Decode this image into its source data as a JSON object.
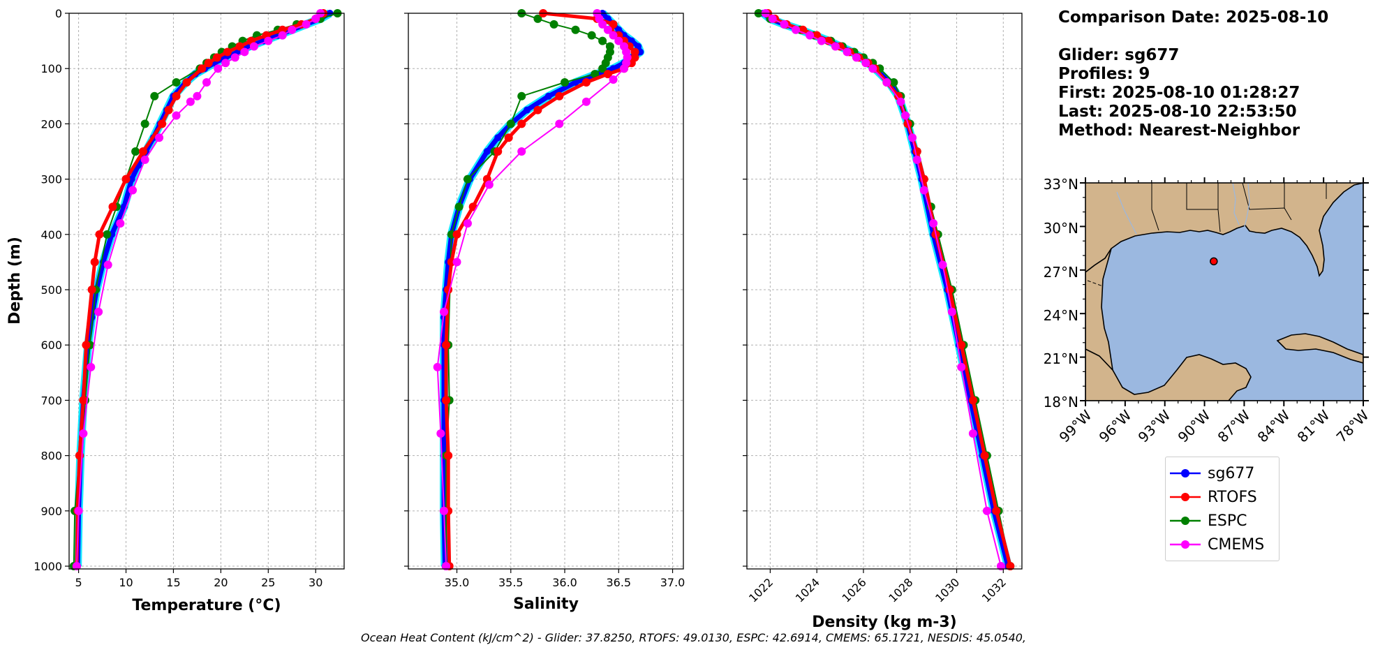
{
  "chart_data": [
    {
      "type": "line",
      "xlabel": "Temperature (°C)",
      "ylabel": "Depth (m)",
      "xlim": [
        4,
        33
      ],
      "ylim": [
        1005,
        0
      ],
      "xticks": [
        5,
        10,
        15,
        20,
        25,
        30
      ],
      "yticks": [
        0,
        100,
        200,
        300,
        400,
        500,
        600,
        700,
        800,
        900,
        1000
      ],
      "grid": true,
      "series": [
        {
          "name": "sg677",
          "depth": [
            0,
            10,
            20,
            30,
            40,
            50,
            60,
            70,
            80,
            90,
            100,
            110,
            125,
            150,
            175,
            200,
            225,
            250,
            275,
            300,
            350,
            400,
            450,
            500,
            550,
            600,
            700,
            800,
            900,
            1000
          ],
          "values": [
            31.5,
            30.5,
            29.0,
            27.5,
            26.0,
            24.5,
            23.0,
            21.8,
            20.5,
            19.3,
            18.3,
            17.3,
            16.3,
            15.0,
            14.3,
            13.6,
            12.9,
            12.1,
            11.3,
            10.6,
            9.8,
            8.5,
            7.6,
            6.9,
            6.4,
            6.0,
            5.5,
            5.2,
            5.0,
            4.9
          ]
        },
        {
          "name": "RTOFS",
          "depth": [
            0,
            10,
            20,
            30,
            40,
            50,
            60,
            70,
            80,
            90,
            100,
            125,
            150,
            175,
            200,
            250,
            300,
            350,
            400,
            450,
            500,
            600,
            700,
            800,
            900,
            1000
          ],
          "values": [
            30.8,
            30.0,
            28.5,
            26.5,
            24.8,
            23.2,
            22.0,
            20.7,
            19.6,
            18.7,
            18.0,
            16.4,
            15.3,
            14.5,
            13.8,
            11.8,
            10.0,
            8.6,
            7.2,
            6.7,
            6.4,
            5.8,
            5.5,
            5.1,
            4.9,
            4.8
          ]
        },
        {
          "name": "ESPC",
          "depth": [
            0,
            10,
            20,
            30,
            40,
            50,
            60,
            70,
            80,
            90,
            100,
            125,
            150,
            200,
            250,
            300,
            350,
            400,
            500,
            600,
            700,
            800,
            900,
            1000
          ],
          "values": [
            32.3,
            30.5,
            28.0,
            26.0,
            23.8,
            22.3,
            21.2,
            20.1,
            19.3,
            18.5,
            17.8,
            15.3,
            13.0,
            12.0,
            11.0,
            10.0,
            9.0,
            8.0,
            6.8,
            6.2,
            5.7,
            5.1,
            4.6,
            4.5
          ]
        },
        {
          "name": "CMEMS",
          "depth": [
            0,
            10,
            20,
            30,
            40,
            50,
            60,
            70,
            80,
            90,
            100,
            125,
            150,
            160,
            185,
            225,
            265,
            320,
            380,
            455,
            540,
            640,
            760,
            900,
            1000
          ],
          "values": [
            30.5,
            30.0,
            29.0,
            27.5,
            26.5,
            25.0,
            23.5,
            22.5,
            21.5,
            20.5,
            19.7,
            18.5,
            17.5,
            16.8,
            15.3,
            13.5,
            12.0,
            10.7,
            9.4,
            8.1,
            7.1,
            6.3,
            5.5,
            5.0,
            4.8
          ]
        }
      ]
    },
    {
      "type": "line",
      "xlabel": "Salinity",
      "ylabel": "",
      "xlim": [
        34.55,
        37.1
      ],
      "ylim": [
        1005,
        0
      ],
      "xticks": [
        35.0,
        35.5,
        36.0,
        36.5,
        37.0
      ],
      "yticks": [
        0,
        100,
        200,
        300,
        400,
        500,
        600,
        700,
        800,
        900,
        1000
      ],
      "grid": true,
      "series": [
        {
          "name": "sg677",
          "depth": [
            0,
            10,
            20,
            30,
            40,
            50,
            60,
            70,
            80,
            90,
            100,
            110,
            125,
            150,
            175,
            200,
            225,
            250,
            300,
            350,
            400,
            450,
            500,
            550,
            600,
            700,
            800,
            900,
            1000
          ],
          "values": [
            36.35,
            36.4,
            36.45,
            36.5,
            36.55,
            36.62,
            36.68,
            36.7,
            36.62,
            36.55,
            36.45,
            36.3,
            36.1,
            35.85,
            35.65,
            35.5,
            35.38,
            35.28,
            35.12,
            35.02,
            34.95,
            34.92,
            34.9,
            34.88,
            34.88,
            34.88,
            34.88,
            34.88,
            34.89
          ]
        },
        {
          "name": "RTOFS",
          "depth": [
            0,
            10,
            20,
            30,
            40,
            50,
            60,
            70,
            80,
            90,
            100,
            110,
            125,
            150,
            175,
            200,
            225,
            250,
            300,
            350,
            400,
            450,
            500,
            600,
            700,
            800,
            900,
            1000
          ],
          "values": [
            35.8,
            36.3,
            36.45,
            36.42,
            36.5,
            36.55,
            36.6,
            36.65,
            36.65,
            36.62,
            36.55,
            36.4,
            36.2,
            35.95,
            35.75,
            35.6,
            35.48,
            35.38,
            35.28,
            35.15,
            35.0,
            34.95,
            34.92,
            34.9,
            34.9,
            34.92,
            34.92,
            34.93
          ]
        },
        {
          "name": "ESPC",
          "depth": [
            0,
            10,
            20,
            30,
            40,
            50,
            60,
            70,
            80,
            90,
            100,
            110,
            125,
            150,
            200,
            250,
            300,
            350,
            400,
            600,
            700,
            800,
            900,
            1000
          ],
          "values": [
            35.6,
            35.75,
            35.9,
            36.1,
            36.25,
            36.35,
            36.42,
            36.42,
            36.4,
            36.38,
            36.35,
            36.28,
            36.0,
            35.6,
            35.5,
            35.35,
            35.1,
            35.02,
            34.95,
            34.92,
            34.93,
            34.9,
            34.9,
            34.9
          ]
        },
        {
          "name": "CMEMS",
          "depth": [
            0,
            10,
            20,
            30,
            40,
            50,
            60,
            70,
            80,
            90,
            100,
            120,
            160,
            200,
            250,
            310,
            380,
            450,
            540,
            640,
            760,
            900,
            1000
          ],
          "values": [
            36.3,
            36.32,
            36.35,
            36.4,
            36.45,
            36.5,
            36.55,
            36.57,
            36.58,
            36.57,
            36.55,
            36.45,
            36.2,
            35.95,
            35.6,
            35.3,
            35.1,
            35.0,
            34.88,
            34.82,
            34.85,
            34.88,
            34.9
          ]
        }
      ]
    },
    {
      "type": "line",
      "xlabel": "Density (kg m-3)",
      "ylabel": "",
      "xlim": [
        1021.0,
        1032.8
      ],
      "ylim": [
        1005,
        0
      ],
      "xticks": [
        1022,
        1024,
        1026,
        1028,
        1030,
        1032
      ],
      "yticks": [
        0,
        100,
        200,
        300,
        400,
        500,
        600,
        700,
        800,
        900,
        1000
      ],
      "grid": true,
      "series": [
        {
          "name": "sg677",
          "depth": [
            0,
            10,
            20,
            30,
            40,
            50,
            60,
            70,
            80,
            90,
            100,
            125,
            150,
            200,
            250,
            300,
            400,
            500,
            600,
            700,
            800,
            900,
            1000
          ],
          "values": [
            1021.7,
            1022.0,
            1022.6,
            1023.3,
            1023.9,
            1024.5,
            1025.0,
            1025.5,
            1025.9,
            1026.2,
            1026.5,
            1027.1,
            1027.5,
            1027.9,
            1028.2,
            1028.5,
            1029.0,
            1029.6,
            1030.1,
            1030.6,
            1031.1,
            1031.6,
            1032.2
          ]
        },
        {
          "name": "RTOFS",
          "depth": [
            0,
            10,
            20,
            30,
            40,
            50,
            60,
            70,
            80,
            90,
            100,
            125,
            150,
            200,
            250,
            300,
            400,
            500,
            600,
            700,
            800,
            900,
            1000
          ],
          "values": [
            1021.9,
            1022.2,
            1022.7,
            1023.4,
            1024.0,
            1024.5,
            1025.0,
            1025.4,
            1025.8,
            1026.2,
            1026.5,
            1027.0,
            1027.5,
            1027.9,
            1028.3,
            1028.6,
            1029.1,
            1029.7,
            1030.2,
            1030.7,
            1031.2,
            1031.7,
            1032.3
          ]
        },
        {
          "name": "ESPC",
          "depth": [
            0,
            10,
            20,
            30,
            40,
            50,
            60,
            70,
            80,
            90,
            100,
            125,
            150,
            200,
            250,
            300,
            350,
            400,
            500,
            600,
            700,
            800,
            900,
            1000
          ],
          "values": [
            1021.5,
            1022.0,
            1022.6,
            1023.3,
            1023.9,
            1024.6,
            1025.1,
            1025.6,
            1026.0,
            1026.4,
            1026.7,
            1027.3,
            1027.6,
            1028.0,
            1028.3,
            1028.6,
            1028.9,
            1029.2,
            1029.8,
            1030.3,
            1030.8,
            1031.3,
            1031.8,
            1032.3
          ]
        },
        {
          "name": "CMEMS",
          "depth": [
            0,
            10,
            20,
            30,
            40,
            50,
            60,
            70,
            80,
            90,
            100,
            125,
            160,
            185,
            225,
            265,
            320,
            380,
            455,
            540,
            640,
            760,
            900,
            1000
          ],
          "values": [
            1021.8,
            1022.1,
            1022.6,
            1023.1,
            1023.7,
            1024.2,
            1024.8,
            1025.3,
            1025.7,
            1026.1,
            1026.4,
            1027.0,
            1027.6,
            1027.8,
            1028.1,
            1028.3,
            1028.6,
            1029.0,
            1029.4,
            1029.8,
            1030.2,
            1030.7,
            1031.3,
            1031.9
          ]
        }
      ]
    }
  ],
  "info": {
    "comparison_date": "Comparison Date: 2025-08-10",
    "glider": "Glider: sg677",
    "profiles": "Profiles: 9",
    "first": "First: 2025-08-10 01:28:27",
    "last": "Last: 2025-08-10 22:53:50",
    "method": "Method: Nearest-Neighbor"
  },
  "map": {
    "lat_labels": [
      "33°N",
      "30°N",
      "27°N",
      "24°N",
      "21°N",
      "18°N"
    ],
    "lon_labels": [
      "99°W",
      "96°W",
      "93°W",
      "90°W",
      "87°W",
      "84°W",
      "81°W",
      "78°W"
    ],
    "glider_lat": 27.6,
    "glider_lon": -89.3,
    "land_color": "#d2b48c",
    "ocean_color": "#9bb8e0"
  },
  "legend": [
    "sg677",
    "RTOFS",
    "ESPC",
    "CMEMS"
  ],
  "colors": {
    "sg677": "#0000ff",
    "sg677_glow": "#00e5ff",
    "RTOFS": "#ff0000",
    "ESPC": "#008000",
    "CMEMS": "#ff00ff"
  },
  "ohc_caption": "Ocean Heat Content (kJ/cm^2) - Glider: 37.8250,  RTOFS: 49.0130,  ESPC: 42.6914,  CMEMS: 65.1721,  NESDIS: 45.0540,"
}
